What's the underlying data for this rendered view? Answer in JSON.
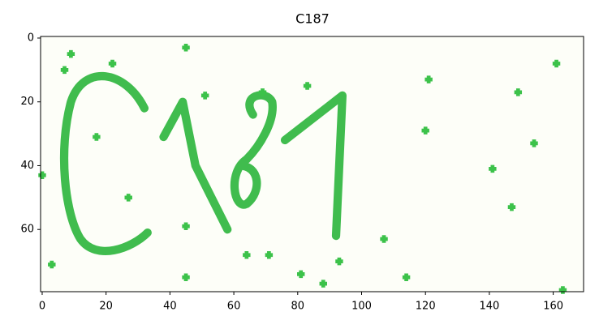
{
  "chart_data": {
    "type": "image",
    "title": "C187",
    "xlim": [
      -0.5,
      169.5
    ],
    "ylim": [
      79.5,
      -0.5
    ],
    "xticks": [
      0,
      20,
      40,
      60,
      80,
      100,
      120,
      140,
      160
    ],
    "yticks": [
      0,
      20,
      40,
      60
    ]
  }
}
